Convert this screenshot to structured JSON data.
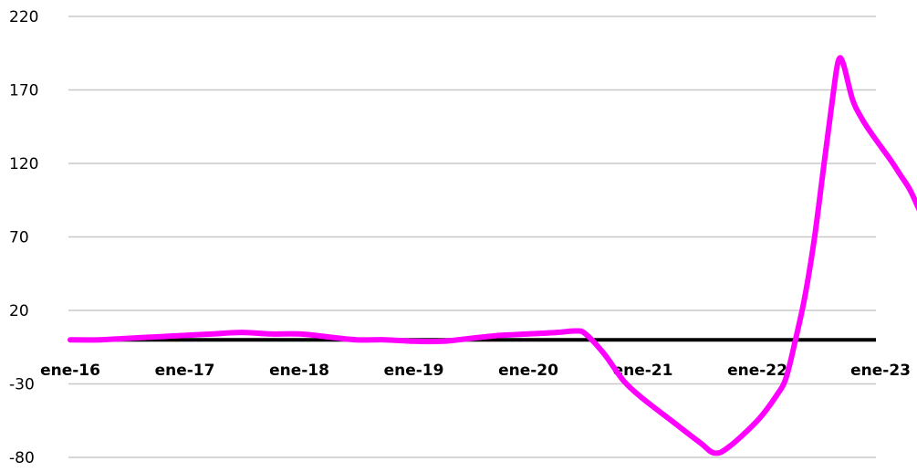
{
  "chart_data": {
    "type": "line",
    "title": "",
    "xlabel": "",
    "ylabel": "",
    "ylim": [
      -80,
      220
    ],
    "y_ticks": [
      -80,
      -30,
      20,
      70,
      120,
      170,
      220
    ],
    "x_tick_labels": [
      "ene-16",
      "ene-17",
      "ene-18",
      "ene-19",
      "ene-20",
      "ene-21",
      "ene-22",
      "ene-23"
    ],
    "x_unit": "months since ene-16",
    "grid": true,
    "legend": "none",
    "series": [
      {
        "color": "#ff00ff",
        "points": [
          [
            0,
            0
          ],
          [
            3,
            0
          ],
          [
            6,
            1
          ],
          [
            9,
            2
          ],
          [
            12,
            3
          ],
          [
            15,
            4
          ],
          [
            18,
            5
          ],
          [
            21,
            4
          ],
          [
            24,
            4
          ],
          [
            27,
            2
          ],
          [
            30,
            0
          ],
          [
            33,
            0
          ],
          [
            36,
            -1
          ],
          [
            39,
            -1
          ],
          [
            42,
            1
          ],
          [
            45,
            3
          ],
          [
            48,
            4
          ],
          [
            51,
            5
          ],
          [
            53,
            6
          ],
          [
            54,
            4
          ],
          [
            56,
            -10
          ],
          [
            58,
            -28
          ],
          [
            60,
            -40
          ],
          [
            63,
            -55
          ],
          [
            66,
            -70
          ],
          [
            67.5,
            -77
          ],
          [
            69,
            -73
          ],
          [
            72,
            -55
          ],
          [
            74,
            -38
          ],
          [
            75,
            -26
          ],
          [
            76,
            0
          ],
          [
            77,
            30
          ],
          [
            78,
            70
          ],
          [
            79,
            120
          ],
          [
            80,
            170
          ],
          [
            80.5,
            190
          ],
          [
            81,
            188
          ],
          [
            82,
            163
          ],
          [
            83,
            150
          ],
          [
            84,
            140
          ],
          [
            86,
            122
          ],
          [
            87,
            112
          ],
          [
            88,
            102
          ],
          [
            89,
            88
          ],
          [
            90,
            74
          ],
          [
            91,
            62
          ],
          [
            92,
            53
          ]
        ]
      }
    ]
  }
}
